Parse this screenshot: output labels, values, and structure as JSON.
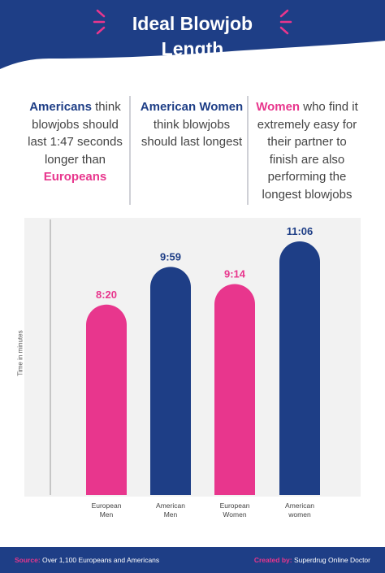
{
  "header": {
    "title_line1": "Ideal Blowjob",
    "title_line2": "Length",
    "colors": {
      "navy": "#1e3e86",
      "pink": "#e8368d"
    }
  },
  "facts": [
    {
      "p1": "Americans",
      "p2": " think blowjobs should last 1:47 seconds longer than ",
      "p3": "Europeans"
    },
    {
      "p1": "American Women",
      "p2": " think blowjobs should last longest"
    },
    {
      "p1": "Women",
      "p2": " who find it extremely easy for their partner to finish are also performing the longest blowjobs"
    }
  ],
  "chart_data": {
    "type": "bar",
    "ylabel": "Time in minutes",
    "categories": [
      "European\nMen",
      "American\nMen",
      "European\nWomen",
      "American\nwomen"
    ],
    "values_label": [
      "8:20",
      "9:59",
      "9:14",
      "11:06"
    ],
    "values_minutes": [
      8.333,
      9.983,
      9.233,
      11.1
    ],
    "bar_colors": [
      "#e8368d",
      "#1e3e86",
      "#e8368d",
      "#1e3e86"
    ],
    "ylim": [
      0,
      11.1
    ],
    "grid": false
  },
  "footer": {
    "source_label": "Source:",
    "source_text": "Over 1,100 Europeans and Americans",
    "created_label": "Created by:",
    "created_text": "Superdrug Online Doctor"
  }
}
